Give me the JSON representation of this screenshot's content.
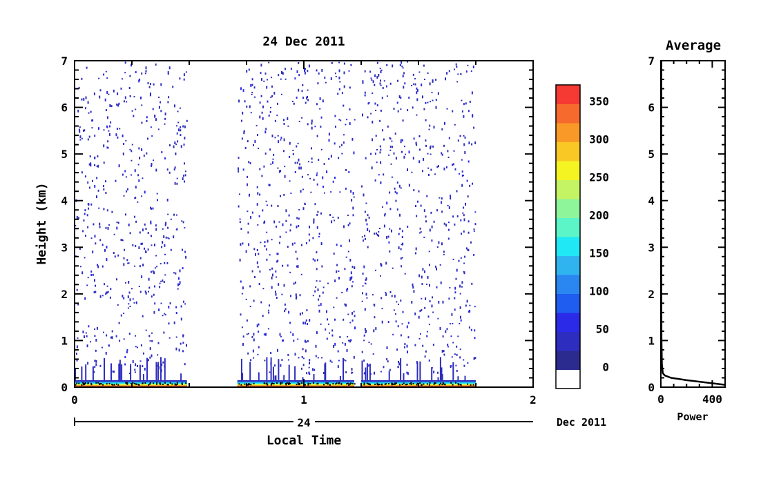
{
  "chart_data": [
    {
      "type": "heatmap",
      "title": "24 Dec 2011",
      "xlabel": "Local Time",
      "ylabel": "Height (km)",
      "xlim": [
        0,
        2
      ],
      "ylim": [
        0,
        7
      ],
      "x_ticks": [
        "0",
        "1",
        "2"
      ],
      "y_ticks": [
        "0",
        "1",
        "2",
        "3",
        "4",
        "5",
        "6",
        "7"
      ],
      "date_axis": {
        "day_label": "24",
        "month_label": "Dec 2011"
      },
      "data_intervals": [
        [
          0.0,
          0.49
        ],
        [
          0.71,
          1.22
        ],
        [
          1.25,
          1.75
        ]
      ],
      "surface_layer_top_km": 0.15,
      "colorbar": {
        "ticks": [
          "0",
          "50",
          "100",
          "150",
          "200",
          "250",
          "300",
          "350"
        ],
        "range": [
          -25,
          375
        ],
        "colors": [
          "#ffffff",
          "#2b2b8f",
          "#2d2dbf",
          "#2a2ae8",
          "#1f5cf0",
          "#2a86f0",
          "#30b4f0",
          "#20e8f4",
          "#5cf5c8",
          "#8ef59a",
          "#c4f464",
          "#f4f423",
          "#f9c824",
          "#f99a28",
          "#f66a2e",
          "#f53a34"
        ]
      },
      "grid": false,
      "legend": "colorbar-right"
    },
    {
      "type": "line",
      "title": "Average",
      "xlabel": "Power",
      "ylabel": "",
      "xlim": [
        0,
        500
      ],
      "ylim": [
        0,
        7
      ],
      "x_ticks": [
        "0",
        "400"
      ],
      "y_ticks": [
        "0",
        "1",
        "2",
        "3",
        "4",
        "5",
        "6",
        "7"
      ],
      "series": [
        {
          "x": [
            500,
            350,
            200,
            80,
            30,
            15,
            8,
            5,
            4,
            4,
            4
          ],
          "y": [
            0.05,
            0.1,
            0.15,
            0.2,
            0.25,
            0.3,
            0.5,
            1,
            2,
            4,
            7
          ]
        }
      ]
    }
  ]
}
